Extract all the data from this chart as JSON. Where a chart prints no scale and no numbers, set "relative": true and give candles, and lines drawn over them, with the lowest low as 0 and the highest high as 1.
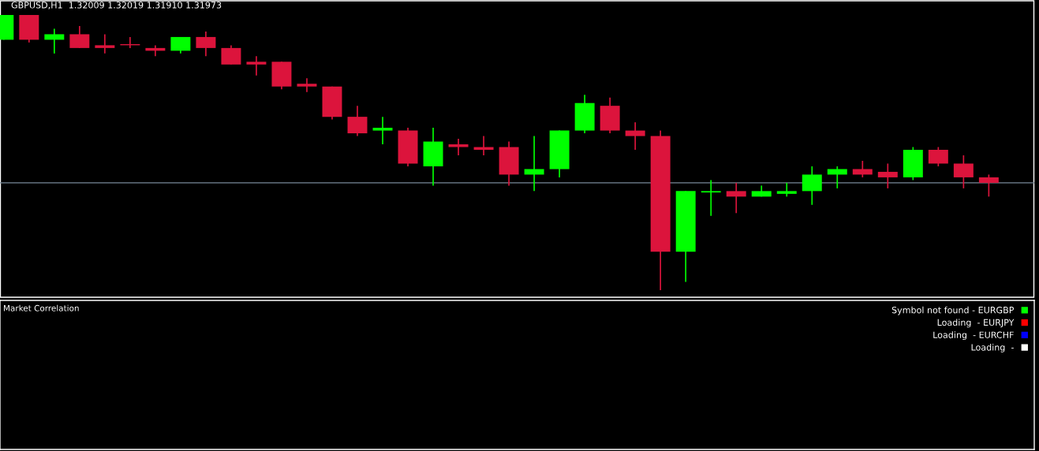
{
  "chart_data": [
    {
      "type": "candlestick",
      "title": "GBPUSD,H1  1.32009 1.32019 1.31910 1.31973",
      "relative": true,
      "categories": [
        null,
        null,
        null,
        null,
        null,
        null,
        null,
        null,
        null,
        null,
        null,
        null,
        null,
        null,
        null,
        null,
        null,
        null,
        null,
        null,
        null,
        null,
        null,
        null,
        null,
        null,
        null,
        null,
        null,
        null,
        null,
        null,
        null,
        null,
        null,
        null,
        null,
        null,
        null,
        null
      ],
      "ohlc": [
        [
          0.91,
          1.0,
          0.91,
          1.0
        ],
        [
          1.0,
          1.0,
          0.9,
          0.91
        ],
        [
          0.91,
          0.95,
          0.86,
          0.93
        ],
        [
          0.93,
          0.96,
          0.88,
          0.88
        ],
        [
          0.89,
          0.93,
          0.86,
          0.88
        ],
        [
          0.89,
          0.92,
          0.88,
          0.89
        ],
        [
          0.88,
          0.89,
          0.85,
          0.87
        ],
        [
          0.87,
          0.92,
          0.86,
          0.92
        ],
        [
          0.92,
          0.94,
          0.85,
          0.88
        ],
        [
          0.88,
          0.89,
          0.82,
          0.82
        ],
        [
          0.83,
          0.85,
          0.78,
          0.82
        ],
        [
          0.83,
          0.83,
          0.73,
          0.74
        ],
        [
          0.75,
          0.77,
          0.72,
          0.74
        ],
        [
          0.74,
          0.74,
          0.62,
          0.63
        ],
        [
          0.63,
          0.67,
          0.56,
          0.57
        ],
        [
          0.58,
          0.63,
          0.53,
          0.59
        ],
        [
          0.58,
          0.59,
          0.45,
          0.46
        ],
        [
          0.45,
          0.59,
          0.38,
          0.54
        ],
        [
          0.53,
          0.55,
          0.49,
          0.52
        ],
        [
          0.52,
          0.56,
          0.49,
          0.51
        ],
        [
          0.52,
          0.54,
          0.38,
          0.42
        ],
        [
          0.42,
          0.56,
          0.36,
          0.44
        ],
        [
          0.44,
          0.58,
          0.41,
          0.58
        ],
        [
          0.58,
          0.71,
          0.57,
          0.68
        ],
        [
          0.67,
          0.7,
          0.57,
          0.58
        ],
        [
          0.58,
          0.61,
          0.51,
          0.56
        ],
        [
          0.56,
          0.58,
          0.0,
          0.14
        ],
        [
          0.14,
          0.36,
          0.03,
          0.36
        ],
        [
          0.355,
          0.4,
          0.27,
          0.36
        ],
        [
          0.36,
          0.39,
          0.28,
          0.34
        ],
        [
          0.34,
          0.38,
          0.34,
          0.36
        ],
        [
          0.35,
          0.39,
          0.34,
          0.36
        ],
        [
          0.36,
          0.45,
          0.31,
          0.42
        ],
        [
          0.42,
          0.45,
          0.37,
          0.44
        ],
        [
          0.44,
          0.47,
          0.41,
          0.42
        ],
        [
          0.43,
          0.46,
          0.37,
          0.41
        ],
        [
          0.41,
          0.52,
          0.4,
          0.51
        ],
        [
          0.51,
          0.52,
          0.45,
          0.46
        ],
        [
          0.46,
          0.49,
          0.37,
          0.41
        ],
        [
          0.41,
          0.42,
          0.34,
          0.39
        ]
      ],
      "colors": [
        "#00ff00",
        "#dc143c",
        "#00ff00",
        "#dc143c",
        "#dc143c",
        "#dc143c",
        "#dc143c",
        "#00ff00",
        "#dc143c",
        "#dc143c",
        "#dc143c",
        "#dc143c",
        "#dc143c",
        "#dc143c",
        "#dc143c",
        "#00ff00",
        "#dc143c",
        "#00ff00",
        "#dc143c",
        "#dc143c",
        "#dc143c",
        "#00ff00",
        "#00ff00",
        "#00ff00",
        "#dc143c",
        "#dc143c",
        "#dc143c",
        "#00ff00",
        "#00ff00",
        "#dc143c",
        "#00ff00",
        "#00ff00",
        "#00ff00",
        "#00ff00",
        "#dc143c",
        "#dc143c",
        "#00ff00",
        "#dc143c",
        "#dc143c",
        "#dc143c"
      ],
      "ref_lines": [
        {
          "axis": "y",
          "value": 0.39,
          "color": "#778899"
        }
      ]
    },
    {
      "type": "other",
      "title": "Market Correlation",
      "legend": "top right",
      "series": [
        {
          "name": "Symbol not found - EURGBP",
          "color": "#00ff00"
        },
        {
          "name": "Loading  - EURJPY",
          "color": "#ff0000"
        },
        {
          "name": "Loading  - EURCHF",
          "color": "#0000ff"
        },
        {
          "name": "Loading  -",
          "color": "#ffffff"
        }
      ]
    }
  ]
}
